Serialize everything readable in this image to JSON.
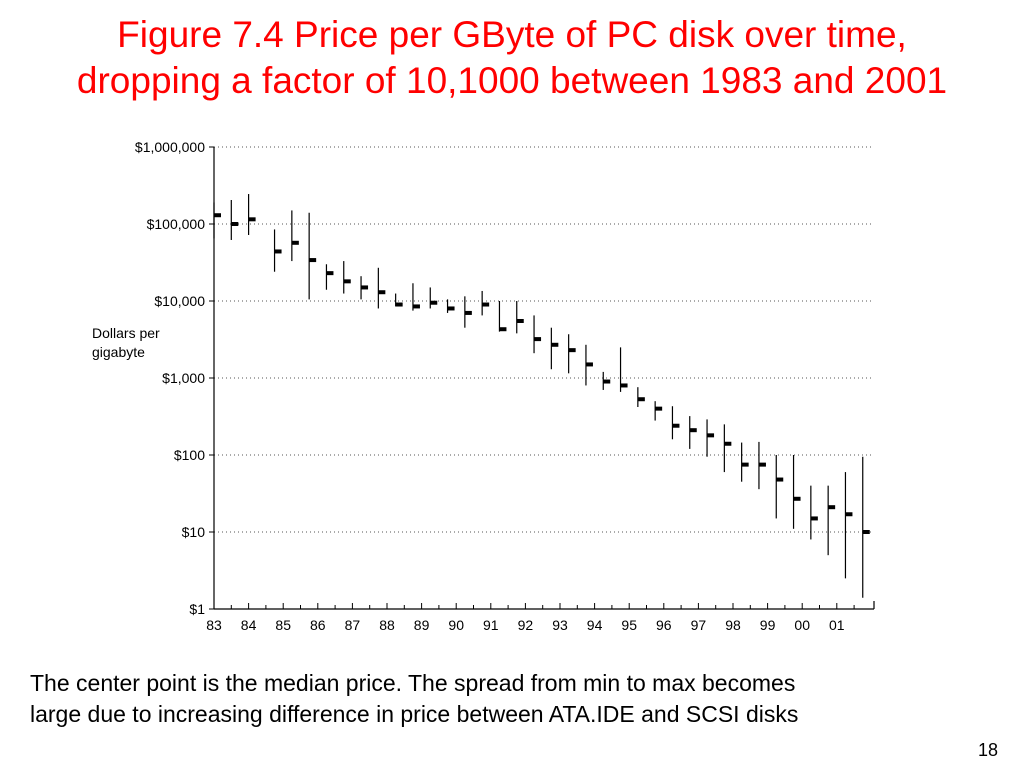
{
  "slide": {
    "title_line1": "Figure 7.4 Price per GByte of PC disk over time,",
    "title_line2": "dropping a factor of 10,1000 between 1983 and 2001",
    "caption_line1": "The center point is the median price. The spread from min to max becomes",
    "caption_line2": "large due to increasing difference in price between ATA.IDE and SCSI disks",
    "page_number": "18"
  },
  "colors": {
    "title": "#ff0000",
    "marks": "#000000",
    "grid": "#555555"
  },
  "chart_data": {
    "type": "range-plot",
    "ylabel": [
      "Dollars per",
      "gigabyte"
    ],
    "yscale": "log",
    "ylim": [
      1,
      1000000
    ],
    "y_ticks": [
      {
        "value": 1000000,
        "label": "$1,000,000"
      },
      {
        "value": 100000,
        "label": "$100,000"
      },
      {
        "value": 10000,
        "label": "$10,000"
      },
      {
        "value": 1000,
        "label": "$1,000"
      },
      {
        "value": 100,
        "label": "$100"
      },
      {
        "value": 10,
        "label": "$10"
      },
      {
        "value": 1,
        "label": "$1"
      }
    ],
    "x_ticks": [
      "83",
      "84",
      "85",
      "86",
      "87",
      "88",
      "89",
      "90",
      "91",
      "92",
      "93",
      "94",
      "95",
      "96",
      "97",
      "98",
      "99",
      "00",
      "01"
    ],
    "grid": "horizontal dotted",
    "points": [
      {
        "t": 83.0,
        "min": 65000,
        "median": 130000,
        "max": 190000
      },
      {
        "t": 83.5,
        "min": 62000,
        "median": 100000,
        "max": 205000
      },
      {
        "t": 84.0,
        "min": 72000,
        "median": 115000,
        "max": 245000
      },
      {
        "t": 84.75,
        "min": 24000,
        "median": 44000,
        "max": 85000
      },
      {
        "t": 85.25,
        "min": 33000,
        "median": 57000,
        "max": 150000
      },
      {
        "t": 85.75,
        "min": 10500,
        "median": 34000,
        "max": 140000
      },
      {
        "t": 86.25,
        "min": 14000,
        "median": 23000,
        "max": 30000
      },
      {
        "t": 86.75,
        "min": 12500,
        "median": 18000,
        "max": 33000
      },
      {
        "t": 87.25,
        "min": 10500,
        "median": 15000,
        "max": 21000
      },
      {
        "t": 87.75,
        "min": 8000,
        "median": 13000,
        "max": 27000
      },
      {
        "t": 88.25,
        "min": 8500,
        "median": 9000,
        "max": 12500
      },
      {
        "t": 88.75,
        "min": 7500,
        "median": 8500,
        "max": 17000
      },
      {
        "t": 89.25,
        "min": 8000,
        "median": 9500,
        "max": 15000
      },
      {
        "t": 89.75,
        "min": 7000,
        "median": 8000,
        "max": 10500
      },
      {
        "t": 90.25,
        "min": 4500,
        "median": 7000,
        "max": 11500
      },
      {
        "t": 90.75,
        "min": 6500,
        "median": 9000,
        "max": 13500
      },
      {
        "t": 91.25,
        "min": 4000,
        "median": 4300,
        "max": 10000
      },
      {
        "t": 91.75,
        "min": 3800,
        "median": 5500,
        "max": 10000
      },
      {
        "t": 92.25,
        "min": 2100,
        "median": 3200,
        "max": 6500
      },
      {
        "t": 92.75,
        "min": 1300,
        "median": 2700,
        "max": 4500
      },
      {
        "t": 93.25,
        "min": 1150,
        "median": 2300,
        "max": 3700
      },
      {
        "t": 93.75,
        "min": 800,
        "median": 1500,
        "max": 2700
      },
      {
        "t": 94.25,
        "min": 700,
        "median": 900,
        "max": 1200
      },
      {
        "t": 94.75,
        "min": 660,
        "median": 800,
        "max": 2500
      },
      {
        "t": 95.25,
        "min": 420,
        "median": 530,
        "max": 760
      },
      {
        "t": 95.75,
        "min": 280,
        "median": 400,
        "max": 500
      },
      {
        "t": 96.25,
        "min": 160,
        "median": 240,
        "max": 430
      },
      {
        "t": 96.75,
        "min": 120,
        "median": 210,
        "max": 320
      },
      {
        "t": 97.25,
        "min": 95,
        "median": 180,
        "max": 290
      },
      {
        "t": 97.75,
        "min": 60,
        "median": 140,
        "max": 250
      },
      {
        "t": 98.25,
        "min": 45,
        "median": 75,
        "max": 145
      },
      {
        "t": 98.75,
        "min": 36,
        "median": 75,
        "max": 148
      },
      {
        "t": 99.25,
        "min": 15,
        "median": 48,
        "max": 100
      },
      {
        "t": 99.75,
        "min": 11,
        "median": 27,
        "max": 100
      },
      {
        "t": 100.25,
        "min": 8,
        "median": 15,
        "max": 40
      },
      {
        "t": 100.75,
        "min": 5,
        "median": 21,
        "max": 40
      },
      {
        "t": 101.25,
        "min": 2.5,
        "median": 17,
        "max": 60
      },
      {
        "t": 101.75,
        "min": 1.4,
        "median": 10,
        "max": 95
      }
    ]
  }
}
